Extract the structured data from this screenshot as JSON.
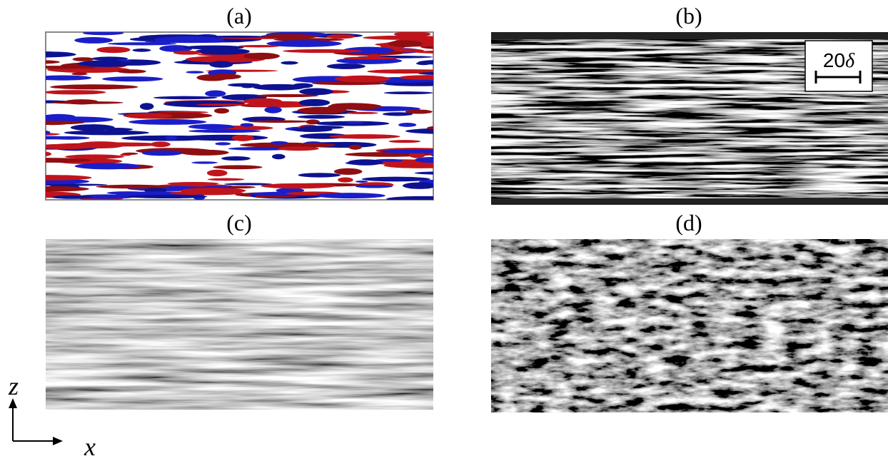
{
  "panels": [
    {
      "label": "(a)"
    },
    {
      "label": "(b)"
    },
    {
      "label": "(c)"
    },
    {
      "label": "(d)"
    }
  ],
  "scale_bar": {
    "number": "20",
    "symbol": "δ"
  },
  "axes": {
    "vertical": "z",
    "horizontal": "x"
  }
}
